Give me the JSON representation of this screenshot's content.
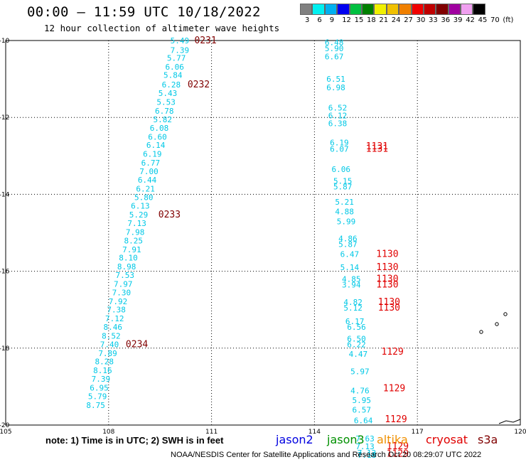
{
  "header": {
    "title": "00:00 — 11:59 UTC 10/18/2022",
    "subtitle": "12 hour collection of altimeter wave heights"
  },
  "colorbar": {
    "colors": [
      "#808080",
      "#00f0f0",
      "#00b0f0",
      "#0000f0",
      "#00c040",
      "#008000",
      "#f0f000",
      "#f0c000",
      "#f08000",
      "#f00000",
      "#c00000",
      "#800000",
      "#a000a0",
      "#f0a0f0",
      "#000000"
    ],
    "labels": [
      "3",
      "6",
      "9",
      "12",
      "15",
      "18",
      "21",
      "24",
      "27",
      "30",
      "33",
      "36",
      "39",
      "42",
      "45",
      "70",
      "(ft)"
    ]
  },
  "axes": {
    "lat_labels": [
      "-10",
      "-12",
      "-14",
      "-16",
      "-18",
      "-20"
    ],
    "lon_labels": [
      "105",
      "108",
      "111",
      "114",
      "117",
      "120"
    ]
  },
  "map_values": [
    {
      "lon": 109.8,
      "lat": -10.0,
      "text": "5.49",
      "color": "#00c8e6"
    },
    {
      "lon": 109.8,
      "lat": -10.25,
      "text": "7.39",
      "color": "#00c8e6"
    },
    {
      "lon": 109.7,
      "lat": -10.45,
      "text": "5.77",
      "color": "#00c8e6"
    },
    {
      "lon": 109.65,
      "lat": -10.68,
      "text": "6.06",
      "color": "#00c8e6"
    },
    {
      "lon": 109.6,
      "lat": -10.9,
      "text": "5.84",
      "color": "#00c8e6"
    },
    {
      "lon": 109.55,
      "lat": -11.15,
      "text": "6.28",
      "color": "#00c8e6"
    },
    {
      "lon": 109.45,
      "lat": -11.37,
      "text": "5.43",
      "color": "#00c8e6"
    },
    {
      "lon": 109.4,
      "lat": -11.6,
      "text": "5.53",
      "color": "#00c8e6"
    },
    {
      "lon": 109.35,
      "lat": -11.83,
      "text": "6.78",
      "color": "#00c8e6"
    },
    {
      "lon": 109.3,
      "lat": -12.05,
      "text": "5.82",
      "color": "#00c8e6"
    },
    {
      "lon": 109.2,
      "lat": -12.27,
      "text": "6.08",
      "color": "#00c8e6"
    },
    {
      "lon": 109.15,
      "lat": -12.5,
      "text": "6.60",
      "color": "#00c8e6"
    },
    {
      "lon": 109.1,
      "lat": -12.72,
      "text": "6.14",
      "color": "#00c8e6"
    },
    {
      "lon": 109.0,
      "lat": -12.95,
      "text": "6.19",
      "color": "#00c8e6"
    },
    {
      "lon": 108.95,
      "lat": -13.18,
      "text": "6.77",
      "color": "#00c8e6"
    },
    {
      "lon": 108.9,
      "lat": -13.4,
      "text": "7.00",
      "color": "#00c8e6"
    },
    {
      "lon": 108.85,
      "lat": -13.62,
      "text": "6.44",
      "color": "#00c8e6"
    },
    {
      "lon": 108.8,
      "lat": -13.85,
      "text": "6.21",
      "color": "#00c8e6"
    },
    {
      "lon": 108.75,
      "lat": -14.08,
      "text": "5.80",
      "color": "#00c8e6"
    },
    {
      "lon": 108.65,
      "lat": -14.3,
      "text": "6.13",
      "color": "#00c8e6"
    },
    {
      "lon": 108.6,
      "lat": -14.53,
      "text": "5.29",
      "color": "#00c8e6"
    },
    {
      "lon": 108.55,
      "lat": -14.75,
      "text": "7.13",
      "color": "#00c8e6"
    },
    {
      "lon": 108.5,
      "lat": -14.98,
      "text": "7.98",
      "color": "#00c8e6"
    },
    {
      "lon": 108.45,
      "lat": -15.2,
      "text": "8.25",
      "color": "#00c8e6"
    },
    {
      "lon": 108.4,
      "lat": -15.43,
      "text": "7.91",
      "color": "#00c8e6"
    },
    {
      "lon": 108.3,
      "lat": -15.65,
      "text": "8.10",
      "color": "#00c8e6"
    },
    {
      "lon": 108.25,
      "lat": -15.88,
      "text": "8.98",
      "color": "#00c8e6"
    },
    {
      "lon": 108.2,
      "lat": -16.1,
      "text": "7.53",
      "color": "#00c8e6"
    },
    {
      "lon": 108.15,
      "lat": -16.33,
      "text": "7.97",
      "color": "#00c8e6"
    },
    {
      "lon": 108.1,
      "lat": -16.55,
      "text": "7.30",
      "color": "#00c8e6"
    },
    {
      "lon": 108.0,
      "lat": -16.78,
      "text": "7.92",
      "color": "#00c8e6"
    },
    {
      "lon": 107.95,
      "lat": -17.0,
      "text": "7.38",
      "color": "#00c8e6"
    },
    {
      "lon": 107.9,
      "lat": -17.23,
      "text": "7.12",
      "color": "#00c8e6"
    },
    {
      "lon": 107.85,
      "lat": -17.45,
      "text": "8.46",
      "color": "#00c8e6"
    },
    {
      "lon": 107.8,
      "lat": -17.68,
      "text": "8.52",
      "color": "#00c8e6"
    },
    {
      "lon": 107.75,
      "lat": -17.9,
      "text": "7.40",
      "color": "#00c8e6"
    },
    {
      "lon": 107.7,
      "lat": -18.13,
      "text": "7.89",
      "color": "#00c8e6"
    },
    {
      "lon": 107.6,
      "lat": -18.35,
      "text": "8.28",
      "color": "#00c8e6"
    },
    {
      "lon": 107.55,
      "lat": -18.58,
      "text": "8.16",
      "color": "#00c8e6"
    },
    {
      "lon": 107.5,
      "lat": -18.8,
      "text": "7.39",
      "color": "#00c8e6"
    },
    {
      "lon": 107.45,
      "lat": -19.03,
      "text": "6.95",
      "color": "#00c8e6"
    },
    {
      "lon": 107.4,
      "lat": -19.25,
      "text": "5.79",
      "color": "#00c8e6"
    },
    {
      "lon": 107.35,
      "lat": -19.48,
      "text": "8.75",
      "color": "#00c8e6"
    },
    {
      "lon": 110.5,
      "lat": -10.0,
      "text": "0231",
      "color": "#800000"
    },
    {
      "lon": 110.3,
      "lat": -11.15,
      "text": "0232",
      "color": "#800000"
    },
    {
      "lon": 109.45,
      "lat": -14.53,
      "text": "0233",
      "color": "#800000"
    },
    {
      "lon": 108.5,
      "lat": -17.9,
      "text": "0234",
      "color": "#800000"
    },
    {
      "lon": 114.3,
      "lat": -10.05,
      "text": "6.48",
      "color": "#00c8e6"
    },
    {
      "lon": 114.3,
      "lat": -10.2,
      "text": "5.90",
      "color": "#00c8e6"
    },
    {
      "lon": 114.3,
      "lat": -10.42,
      "text": "6.67",
      "color": "#00c8e6"
    },
    {
      "lon": 114.35,
      "lat": -11.0,
      "text": "6.51",
      "color": "#00c8e6"
    },
    {
      "lon": 114.35,
      "lat": -11.22,
      "text": "6.98",
      "color": "#00c8e6"
    },
    {
      "lon": 114.4,
      "lat": -11.75,
      "text": "6.52",
      "color": "#00c8e6"
    },
    {
      "lon": 114.4,
      "lat": -11.95,
      "text": "6.12",
      "color": "#00c8e6"
    },
    {
      "lon": 114.4,
      "lat": -12.15,
      "text": "6.38",
      "color": "#00c8e6"
    },
    {
      "lon": 114.45,
      "lat": -12.65,
      "text": "6.19",
      "color": "#00c8e6"
    },
    {
      "lon": 114.45,
      "lat": -12.82,
      "text": "6.07",
      "color": "#00c8e6"
    },
    {
      "lon": 114.5,
      "lat": -13.35,
      "text": "6.06",
      "color": "#00c8e6"
    },
    {
      "lon": 114.55,
      "lat": -13.65,
      "text": "5.15",
      "color": "#00c8e6"
    },
    {
      "lon": 114.55,
      "lat": -13.8,
      "text": "5.87",
      "color": "#00c8e6"
    },
    {
      "lon": 114.6,
      "lat": -14.2,
      "text": "5.21",
      "color": "#00c8e6"
    },
    {
      "lon": 114.6,
      "lat": -14.45,
      "text": "4.88",
      "color": "#00c8e6"
    },
    {
      "lon": 114.65,
      "lat": -14.7,
      "text": "5.99",
      "color": "#00c8e6"
    },
    {
      "lon": 114.7,
      "lat": -15.15,
      "text": "4.86",
      "color": "#00c8e6"
    },
    {
      "lon": 114.7,
      "lat": -15.3,
      "text": "5.87",
      "color": "#00c8e6"
    },
    {
      "lon": 114.75,
      "lat": -15.55,
      "text": "6.47",
      "color": "#00c8e6"
    },
    {
      "lon": 114.75,
      "lat": -15.9,
      "text": "5.14",
      "color": "#00c8e6"
    },
    {
      "lon": 114.8,
      "lat": -16.2,
      "text": "4.85",
      "color": "#00c8e6"
    },
    {
      "lon": 114.8,
      "lat": -16.35,
      "text": "3.94",
      "color": "#00c8e6"
    },
    {
      "lon": 114.85,
      "lat": -16.8,
      "text": "4.82",
      "color": "#00c8e6"
    },
    {
      "lon": 114.85,
      "lat": -16.95,
      "text": "5.12",
      "color": "#00c8e6"
    },
    {
      "lon": 114.9,
      "lat": -17.3,
      "text": "6.17",
      "color": "#00c8e6"
    },
    {
      "lon": 114.95,
      "lat": -17.45,
      "text": "6.56",
      "color": "#00c8e6"
    },
    {
      "lon": 114.95,
      "lat": -17.75,
      "text": "6.50",
      "color": "#00c8e6"
    },
    {
      "lon": 114.95,
      "lat": -17.9,
      "text": "6.22",
      "color": "#00c8e6"
    },
    {
      "lon": 115.0,
      "lat": -18.15,
      "text": "4.47",
      "color": "#00c8e6"
    },
    {
      "lon": 115.05,
      "lat": -18.6,
      "text": "5.97",
      "color": "#00c8e6"
    },
    {
      "lon": 115.05,
      "lat": -19.1,
      "text": "4.76",
      "color": "#00c8e6"
    },
    {
      "lon": 115.1,
      "lat": -19.35,
      "text": "5.95",
      "color": "#00c8e6"
    },
    {
      "lon": 115.1,
      "lat": -19.6,
      "text": "6.57",
      "color": "#00c8e6"
    },
    {
      "lon": 115.15,
      "lat": -19.88,
      "text": "6.64",
      "color": "#00c8e6"
    },
    {
      "lon": 115.2,
      "lat": -20.35,
      "text": "7.63",
      "color": "#00c8e6"
    },
    {
      "lon": 115.2,
      "lat": -20.55,
      "text": "7.13",
      "color": "#00c8e6"
    },
    {
      "lon": 115.25,
      "lat": -20.72,
      "text": "7.12",
      "color": "#00c8e6"
    },
    {
      "lon": 115.25,
      "lat": -20.78,
      "text": "7.18",
      "color": "#00c8e6"
    },
    {
      "lon": 115.5,
      "lat": -12.75,
      "text": "1131",
      "color": "#e00000"
    },
    {
      "lon": 115.5,
      "lat": -12.82,
      "text": "1131",
      "color": "#e00000"
    },
    {
      "lon": 115.8,
      "lat": -15.55,
      "text": "1130",
      "color": "#e00000"
    },
    {
      "lon": 115.8,
      "lat": -15.9,
      "text": "1130",
      "color": "#e00000"
    },
    {
      "lon": 115.8,
      "lat": -16.2,
      "text": "1130",
      "color": "#e00000"
    },
    {
      "lon": 115.8,
      "lat": -16.35,
      "text": "1130",
      "color": "#e00000"
    },
    {
      "lon": 115.85,
      "lat": -16.8,
      "text": "1130",
      "color": "#e00000"
    },
    {
      "lon": 115.85,
      "lat": -16.95,
      "text": "1130",
      "color": "#e00000"
    },
    {
      "lon": 115.95,
      "lat": -18.1,
      "text": "1129",
      "color": "#e00000"
    },
    {
      "lon": 116.0,
      "lat": -19.05,
      "text": "1129",
      "color": "#e00000"
    },
    {
      "lon": 116.05,
      "lat": -19.85,
      "text": "1129",
      "color": "#e00000"
    },
    {
      "lon": 116.1,
      "lat": -20.55,
      "text": "1129",
      "color": "#e00000"
    },
    {
      "lon": 116.1,
      "lat": -20.75,
      "text": "1129",
      "color": "#e00000"
    }
  ],
  "footer": {
    "note": "note: 1) Time is in UTC; 2) SWH is in feet",
    "satellites": [
      {
        "name": "jason2",
        "color": "#0000e0"
      },
      {
        "name": "jason3",
        "color": "#009000"
      },
      {
        "name": "altika",
        "color": "#f09000"
      },
      {
        "name": "cryosat",
        "color": "#e00000"
      },
      {
        "name": "s3a",
        "color": "#800000"
      }
    ],
    "credit": "NOAA/NESDIS Center for Satellite Applications and Research    Oct 20 08:29:07 UTC 2022"
  }
}
